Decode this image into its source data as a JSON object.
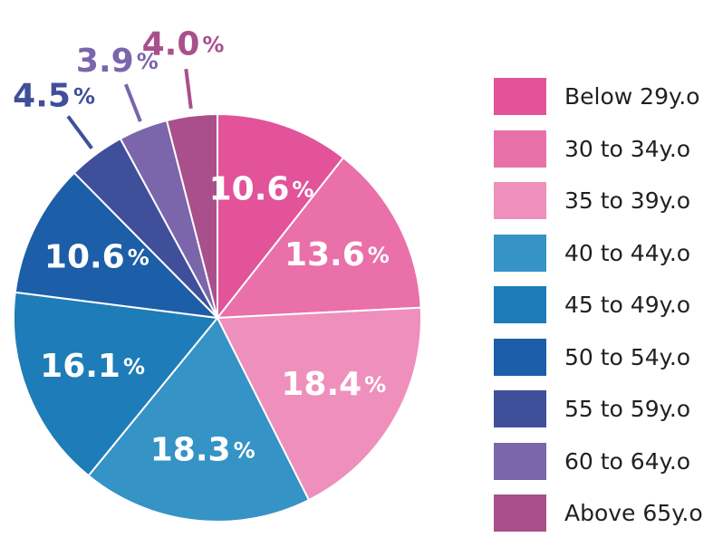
{
  "chart_data": {
    "type": "pie",
    "categories": [
      "Below 29y.o",
      "30 to 34y.o",
      "35 to 39y.o",
      "40 to 44y.o",
      "45 to 49y.o",
      "50 to 54y.o",
      "55 to 59y.o",
      "60 to 64y.o",
      "Above 65y.o"
    ],
    "values": [
      10.6,
      13.6,
      18.4,
      18.3,
      16.1,
      10.6,
      4.5,
      3.9,
      4.0
    ],
    "value_labels": [
      "10.6",
      "13.6",
      "18.4",
      "18.3",
      "16.1",
      "10.6",
      "4.5",
      "3.9",
      "4.0"
    ],
    "unit": "%",
    "colors": [
      "#e2539a",
      "#e970a9",
      "#ef8fbc",
      "#3593c6",
      "#1e7cb8",
      "#1c5ea8",
      "#3f4f9a",
      "#7b65ab",
      "#a9508c"
    ],
    "start_angle": "12 o'clock",
    "direction": "clockwise",
    "legend_position": "right"
  }
}
